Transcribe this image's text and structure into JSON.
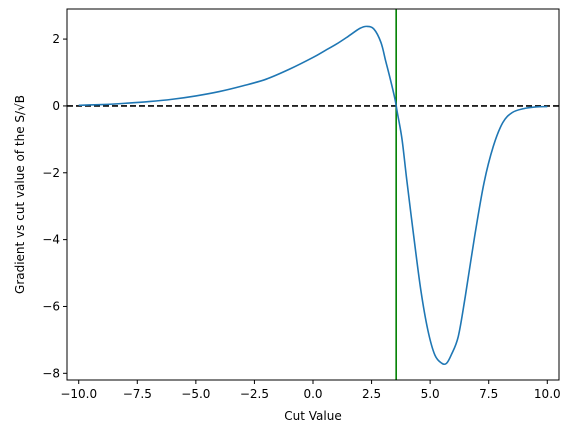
{
  "chart_data": {
    "type": "line",
    "title": "",
    "xlabel": "Cut Value",
    "ylabel": "Gradient vs cut value of the S/√B",
    "xlim": [
      -10.5,
      10.5
    ],
    "ylim": [
      -8.2,
      2.9
    ],
    "xticks": [
      -10.0,
      -7.5,
      -5.0,
      -2.5,
      0.0,
      2.5,
      5.0,
      7.5,
      10.0
    ],
    "xtick_labels": [
      "−10.0",
      "−7.5",
      "−5.0",
      "−2.5",
      "0.0",
      "2.5",
      "5.0",
      "7.5",
      "10.0"
    ],
    "yticks": [
      2,
      0,
      -2,
      -4,
      -6,
      -8
    ],
    "ytick_labels": [
      "2",
      "0",
      "−2",
      "−4",
      "−6",
      "−8"
    ],
    "grid": false,
    "series": [
      {
        "color": "#1f77b4",
        "x": [
          -10.0,
          -9.0,
          -8.0,
          -7.0,
          -6.0,
          -5.0,
          -4.0,
          -3.0,
          -2.0,
          -1.0,
          0.0,
          0.5,
          1.0,
          1.5,
          2.0,
          2.3,
          2.6,
          2.9,
          3.1,
          3.3,
          3.5,
          3.6,
          3.8,
          4.0,
          4.3,
          4.6,
          4.9,
          5.2,
          5.5,
          5.7,
          5.9,
          6.2,
          6.5,
          6.9,
          7.3,
          7.7,
          8.1,
          8.5,
          9.0,
          9.5,
          10.0
        ],
        "y": [
          0.02,
          0.04,
          0.08,
          0.13,
          0.2,
          0.3,
          0.43,
          0.6,
          0.8,
          1.1,
          1.45,
          1.65,
          1.85,
          2.08,
          2.32,
          2.38,
          2.3,
          1.9,
          1.35,
          0.8,
          0.2,
          -0.2,
          -1.0,
          -2.2,
          -3.9,
          -5.5,
          -6.7,
          -7.45,
          -7.7,
          -7.7,
          -7.45,
          -6.9,
          -5.7,
          -3.9,
          -2.3,
          -1.2,
          -0.5,
          -0.2,
          -0.08,
          -0.03,
          -0.02
        ]
      }
    ],
    "reference_lines": [
      {
        "orientation": "horizontal",
        "value": 0,
        "style": "dashed",
        "color": "#000000"
      },
      {
        "orientation": "vertical",
        "value": 3.55,
        "style": "solid",
        "color": "#008000"
      }
    ]
  }
}
